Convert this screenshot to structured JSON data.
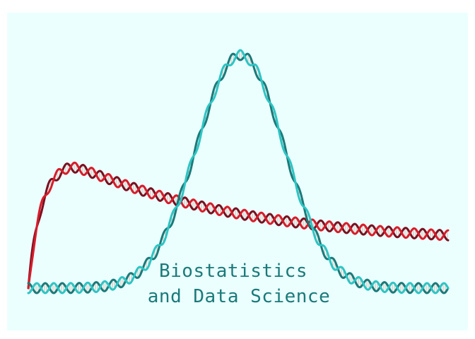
{
  "logo": {
    "line1": "Biostatistics",
    "line2": "and Data Science",
    "text_color": "#1a7a7a"
  },
  "helices": [
    {
      "name": "left-skewed-helix",
      "strand_a_color": "#d81c2a",
      "strand_b_color": "#7a1020",
      "rung_color": "#c8a898"
    },
    {
      "name": "peaked-helix",
      "strand_a_color": "#2ec4c4",
      "strand_b_color": "#1a7a7a",
      "rung_color": "#c8a898"
    }
  ],
  "colors": {
    "background": "#ebffff"
  }
}
